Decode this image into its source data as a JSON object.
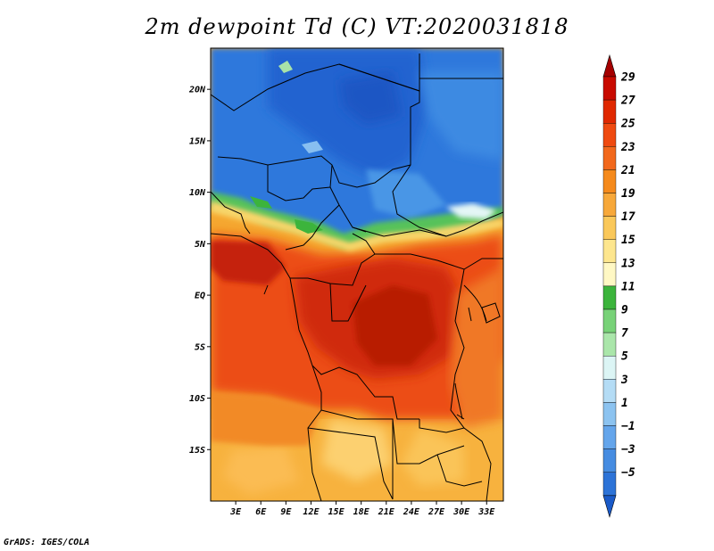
{
  "title": "2m dewpoint Td (C) VT:2020031818",
  "credit": "GrADS: IGES/COLA",
  "map": {
    "lon_range": [
      0,
      35
    ],
    "lat_range": [
      -20,
      24
    ],
    "x_ticks": [
      "3E",
      "6E",
      "9E",
      "12E",
      "15E",
      "18E",
      "21E",
      "24E",
      "27E",
      "30E",
      "33E"
    ],
    "x_tick_lons": [
      3,
      6,
      9,
      12,
      15,
      18,
      21,
      24,
      27,
      30,
      33
    ],
    "y_ticks": [
      "20N",
      "15N",
      "10N",
      "5N",
      "EQ",
      "5S",
      "10S",
      "15S"
    ],
    "y_tick_lats": [
      20,
      15,
      10,
      5,
      0,
      -5,
      -10,
      -15
    ]
  },
  "colorbar": {
    "labels": [
      "29",
      "27",
      "25",
      "23",
      "21",
      "19",
      "17",
      "15",
      "13",
      "11",
      "9",
      "7",
      "5",
      "3",
      "1",
      "−1",
      "−3",
      "−5"
    ],
    "colors": [
      "#a50000",
      "#c80a00",
      "#e02800",
      "#ef4a10",
      "#f2681c",
      "#f58a1c",
      "#f7a83a",
      "#fac85a",
      "#fde68e",
      "#fff8c4",
      "#3cb43c",
      "#78d278",
      "#aae6aa",
      "#dcf5f5",
      "#b4dcf5",
      "#8cc3f0",
      "#64a5eb",
      "#468ce1",
      "#2d73d7",
      "#1a5ac8"
    ]
  }
}
